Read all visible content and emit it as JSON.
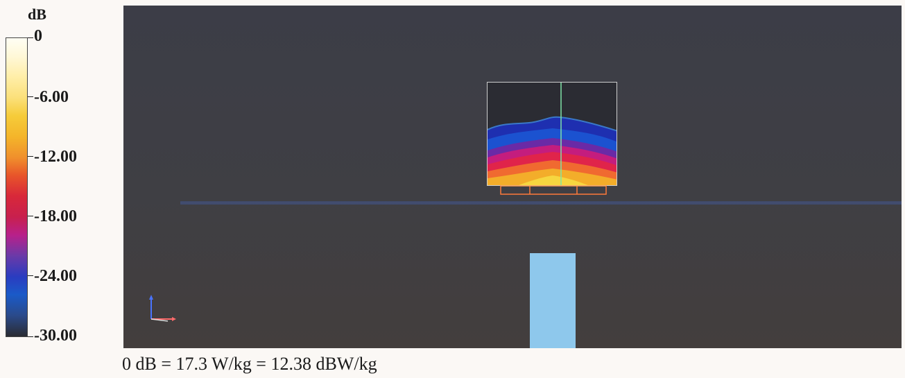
{
  "colorbar": {
    "unit": "dB",
    "ticks": [
      "0",
      "-6.00",
      "-12.00",
      "-18.00",
      "-24.00",
      "-30.00"
    ]
  },
  "caption": "0 dB = 17.3 W/kg = 12.38 dBW/kg",
  "colors": {
    "background": "#3e3f45",
    "device": "#8ec8ec",
    "field_outline": "#cfcfcf",
    "antenna_outline": "#ff7a3a",
    "center_line": "#7fe3a8"
  },
  "icons": {
    "axes": "xyz-axes-icon"
  }
}
